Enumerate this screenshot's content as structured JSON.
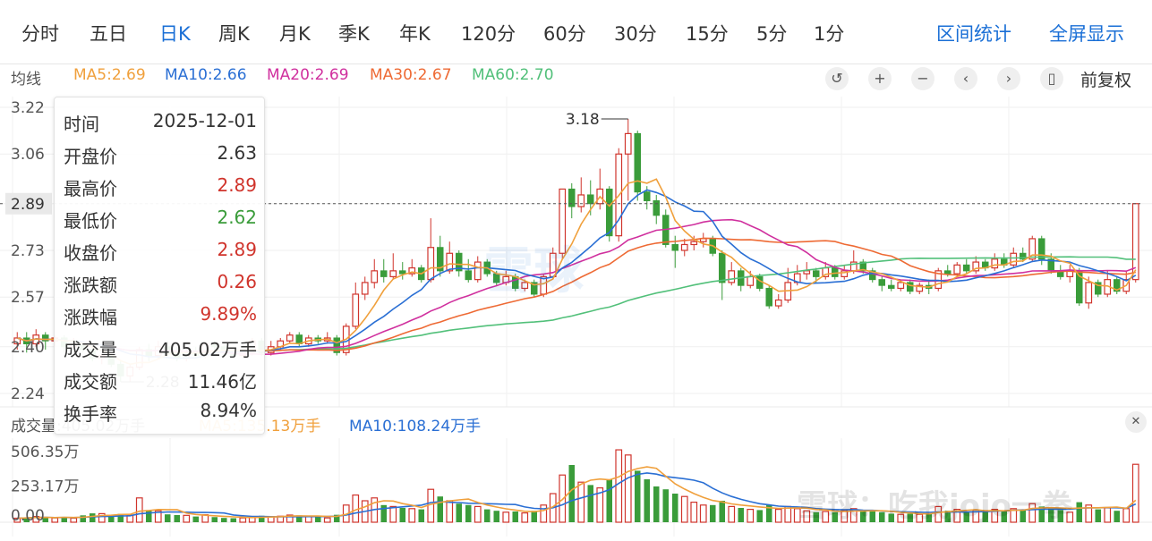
{
  "tabs": [
    {
      "label": "分时",
      "active": false
    },
    {
      "label": "五日",
      "active": false
    },
    {
      "label": "日K",
      "active": true
    },
    {
      "label": "周K",
      "active": false
    },
    {
      "label": "月K",
      "active": false
    },
    {
      "label": "季K",
      "active": false
    },
    {
      "label": "年K",
      "active": false
    },
    {
      "label": "120分",
      "active": false
    },
    {
      "label": "60分",
      "active": false
    },
    {
      "label": "30分",
      "active": false
    },
    {
      "label": "15分",
      "active": false
    },
    {
      "label": "5分",
      "active": false
    },
    {
      "label": "1分",
      "active": false
    }
  ],
  "tools": {
    "interval_stats": "区间统计",
    "fullscreen": "全屏显示",
    "adjust": "前复权"
  },
  "controls": [
    "undo-icon",
    "zoom-in-icon",
    "zoom-out-icon",
    "prev-icon",
    "next-icon",
    "candle-icon"
  ],
  "ma_legend": {
    "title": "均线",
    "items": [
      {
        "label": "MA5:2.69",
        "color": "#f0a03c"
      },
      {
        "label": "MA10:2.66",
        "color": "#2a6fd4"
      },
      {
        "label": "MA20:2.69",
        "color": "#d0309e"
      },
      {
        "label": "MA30:2.67",
        "color": "#ee6a34"
      },
      {
        "label": "MA60:2.70",
        "color": "#52c07a"
      }
    ]
  },
  "tooltip": {
    "rows": [
      {
        "k": "时间",
        "v": "2025-12-01",
        "tone": ""
      },
      {
        "k": "开盘价",
        "v": "2.63",
        "tone": ""
      },
      {
        "k": "最高价",
        "v": "2.89",
        "tone": "up"
      },
      {
        "k": "最低价",
        "v": "2.62",
        "tone": "down"
      },
      {
        "k": "收盘价",
        "v": "2.89",
        "tone": "up"
      },
      {
        "k": "涨跌额",
        "v": "0.26",
        "tone": "up"
      },
      {
        "k": "涨跌幅",
        "v": "9.89%",
        "tone": "up"
      },
      {
        "k": "成交量",
        "v": "405.02万手",
        "tone": ""
      },
      {
        "k": "成交额",
        "v": "11.46亿",
        "tone": ""
      },
      {
        "k": "换手率",
        "v": "8.94%",
        "tone": ""
      }
    ]
  },
  "vol_legend": {
    "items": [
      {
        "label": "成交量:405.02万手",
        "color": "#555555"
      },
      {
        "label": "MA5:135.13万手",
        "color": "#f0a03c"
      },
      {
        "label": "MA10:108.24万手",
        "color": "#2a6fd4"
      }
    ]
  },
  "watermark": "雪球：吃我jojo一拳",
  "watermark_center": "雪球",
  "chart_data": {
    "type": "candlestick",
    "price_axis": {
      "ticks": [
        "3.22",
        "3.06",
        "2.89",
        "2.73",
        "2.57",
        "2.40",
        "2.24"
      ],
      "ylim": [
        2.24,
        3.22
      ],
      "current": "2.89"
    },
    "volume_axis": {
      "ticks": [
        "506.35万",
        "253.17万",
        "0.00"
      ],
      "ylim": [
        0,
        506.35
      ]
    },
    "annotations": {
      "high": "3.18",
      "low": "2.28"
    },
    "colors": {
      "up": "#d0342c",
      "down": "#3a9c3a"
    },
    "candles": [
      {
        "o": 2.41,
        "c": 2.43,
        "h": 2.45,
        "l": 2.39,
        "v": 28
      },
      {
        "o": 2.43,
        "c": 2.41,
        "h": 2.45,
        "l": 2.38,
        "v": 32
      },
      {
        "o": 2.41,
        "c": 2.44,
        "h": 2.46,
        "l": 2.4,
        "v": 40
      },
      {
        "o": 2.44,
        "c": 2.42,
        "h": 2.45,
        "l": 2.39,
        "v": 34
      },
      {
        "o": 2.42,
        "c": 2.43,
        "h": 2.44,
        "l": 2.4,
        "v": 30
      },
      {
        "o": 2.43,
        "c": 2.4,
        "h": 2.44,
        "l": 2.38,
        "v": 35
      },
      {
        "o": 2.4,
        "c": 2.41,
        "h": 2.43,
        "l": 2.39,
        "v": 28
      },
      {
        "o": 2.41,
        "c": 2.39,
        "h": 2.42,
        "l": 2.38,
        "v": 48
      },
      {
        "o": 2.39,
        "c": 2.36,
        "h": 2.4,
        "l": 2.35,
        "v": 62
      },
      {
        "o": 2.36,
        "c": 2.37,
        "h": 2.39,
        "l": 2.34,
        "v": 60
      },
      {
        "o": 2.37,
        "c": 2.34,
        "h": 2.38,
        "l": 2.33,
        "v": 45
      },
      {
        "o": 2.34,
        "c": 2.3,
        "h": 2.35,
        "l": 2.28,
        "v": 58
      },
      {
        "o": 2.3,
        "c": 2.33,
        "h": 2.34,
        "l": 2.28,
        "v": 50
      },
      {
        "o": 2.33,
        "c": 2.39,
        "h": 2.4,
        "l": 2.32,
        "v": 170
      },
      {
        "o": 2.39,
        "c": 2.37,
        "h": 2.41,
        "l": 2.35,
        "v": 85
      },
      {
        "o": 2.37,
        "c": 2.4,
        "h": 2.42,
        "l": 2.36,
        "v": 80
      },
      {
        "o": 2.4,
        "c": 2.38,
        "h": 2.42,
        "l": 2.37,
        "v": 55
      },
      {
        "o": 2.38,
        "c": 2.36,
        "h": 2.4,
        "l": 2.35,
        "v": 50
      },
      {
        "o": 2.36,
        "c": 2.38,
        "h": 2.39,
        "l": 2.35,
        "v": 48
      },
      {
        "o": 2.38,
        "c": 2.37,
        "h": 2.4,
        "l": 2.36,
        "v": 40
      },
      {
        "o": 2.37,
        "c": 2.41,
        "h": 2.42,
        "l": 2.36,
        "v": 52
      },
      {
        "o": 2.41,
        "c": 2.4,
        "h": 2.42,
        "l": 2.38,
        "v": 36
      },
      {
        "o": 2.4,
        "c": 2.38,
        "h": 2.41,
        "l": 2.37,
        "v": 30
      },
      {
        "o": 2.38,
        "c": 2.37,
        "h": 2.39,
        "l": 2.36,
        "v": 28
      },
      {
        "o": 2.37,
        "c": 2.38,
        "h": 2.39,
        "l": 2.36,
        "v": 30
      },
      {
        "o": 2.38,
        "c": 2.42,
        "h": 2.43,
        "l": 2.37,
        "v": 40
      },
      {
        "o": 2.42,
        "c": 2.38,
        "h": 2.43,
        "l": 2.37,
        "v": 45
      },
      {
        "o": 2.38,
        "c": 2.4,
        "h": 2.42,
        "l": 2.37,
        "v": 38
      },
      {
        "o": 2.4,
        "c": 2.42,
        "h": 2.43,
        "l": 2.39,
        "v": 42
      },
      {
        "o": 2.42,
        "c": 2.44,
        "h": 2.45,
        "l": 2.41,
        "v": 50
      },
      {
        "o": 2.44,
        "c": 2.41,
        "h": 2.45,
        "l": 2.4,
        "v": 48
      },
      {
        "o": 2.41,
        "c": 2.43,
        "h": 2.44,
        "l": 2.4,
        "v": 40
      },
      {
        "o": 2.43,
        "c": 2.42,
        "h": 2.44,
        "l": 2.41,
        "v": 35
      },
      {
        "o": 2.42,
        "c": 2.43,
        "h": 2.45,
        "l": 2.41,
        "v": 30
      },
      {
        "o": 2.43,
        "c": 2.38,
        "h": 2.44,
        "l": 2.37,
        "v": 52
      },
      {
        "o": 2.38,
        "c": 2.47,
        "h": 2.48,
        "l": 2.37,
        "v": 120
      },
      {
        "o": 2.47,
        "c": 2.58,
        "h": 2.62,
        "l": 2.46,
        "v": 190
      },
      {
        "o": 2.58,
        "c": 2.62,
        "h": 2.64,
        "l": 2.56,
        "v": 150
      },
      {
        "o": 2.62,
        "c": 2.66,
        "h": 2.7,
        "l": 2.6,
        "v": 170
      },
      {
        "o": 2.66,
        "c": 2.64,
        "h": 2.7,
        "l": 2.62,
        "v": 120
      },
      {
        "o": 2.64,
        "c": 2.66,
        "h": 2.72,
        "l": 2.63,
        "v": 110
      },
      {
        "o": 2.66,
        "c": 2.65,
        "h": 2.69,
        "l": 2.63,
        "v": 100
      },
      {
        "o": 2.65,
        "c": 2.67,
        "h": 2.7,
        "l": 2.64,
        "v": 95
      },
      {
        "o": 2.67,
        "c": 2.63,
        "h": 2.68,
        "l": 2.62,
        "v": 90
      },
      {
        "o": 2.63,
        "c": 2.74,
        "h": 2.84,
        "l": 2.62,
        "v": 230
      },
      {
        "o": 2.74,
        "c": 2.66,
        "h": 2.78,
        "l": 2.64,
        "v": 180
      },
      {
        "o": 2.66,
        "c": 2.72,
        "h": 2.76,
        "l": 2.65,
        "v": 150
      },
      {
        "o": 2.72,
        "c": 2.66,
        "h": 2.73,
        "l": 2.64,
        "v": 130
      },
      {
        "o": 2.66,
        "c": 2.63,
        "h": 2.7,
        "l": 2.62,
        "v": 120
      },
      {
        "o": 2.63,
        "c": 2.69,
        "h": 2.71,
        "l": 2.62,
        "v": 110
      },
      {
        "o": 2.69,
        "c": 2.65,
        "h": 2.7,
        "l": 2.64,
        "v": 90
      },
      {
        "o": 2.65,
        "c": 2.62,
        "h": 2.66,
        "l": 2.61,
        "v": 80
      },
      {
        "o": 2.62,
        "c": 2.64,
        "h": 2.66,
        "l": 2.61,
        "v": 70
      },
      {
        "o": 2.64,
        "c": 2.6,
        "h": 2.65,
        "l": 2.59,
        "v": 75
      },
      {
        "o": 2.6,
        "c": 2.62,
        "h": 2.63,
        "l": 2.59,
        "v": 65
      },
      {
        "o": 2.62,
        "c": 2.58,
        "h": 2.63,
        "l": 2.57,
        "v": 80
      },
      {
        "o": 2.58,
        "c": 2.64,
        "h": 2.65,
        "l": 2.57,
        "v": 120
      },
      {
        "o": 2.64,
        "c": 2.72,
        "h": 2.74,
        "l": 2.63,
        "v": 200
      },
      {
        "o": 2.72,
        "c": 2.94,
        "h": 2.94,
        "l": 2.7,
        "v": 330
      },
      {
        "o": 2.94,
        "c": 2.88,
        "h": 2.96,
        "l": 2.84,
        "v": 400
      },
      {
        "o": 2.88,
        "c": 2.92,
        "h": 2.98,
        "l": 2.86,
        "v": 280
      },
      {
        "o": 2.92,
        "c": 2.89,
        "h": 2.97,
        "l": 2.85,
        "v": 260
      },
      {
        "o": 2.89,
        "c": 2.94,
        "h": 3.01,
        "l": 2.87,
        "v": 240
      },
      {
        "o": 2.94,
        "c": 2.78,
        "h": 2.95,
        "l": 2.76,
        "v": 300
      },
      {
        "o": 2.78,
        "c": 3.06,
        "h": 3.08,
        "l": 2.76,
        "v": 506
      },
      {
        "o": 3.06,
        "c": 3.13,
        "h": 3.18,
        "l": 2.9,
        "v": 470
      },
      {
        "o": 3.13,
        "c": 2.93,
        "h": 3.14,
        "l": 2.9,
        "v": 360
      },
      {
        "o": 2.93,
        "c": 2.9,
        "h": 2.95,
        "l": 2.87,
        "v": 300
      },
      {
        "o": 2.9,
        "c": 2.85,
        "h": 2.92,
        "l": 2.82,
        "v": 250
      },
      {
        "o": 2.85,
        "c": 2.75,
        "h": 2.87,
        "l": 2.74,
        "v": 230
      },
      {
        "o": 2.75,
        "c": 2.73,
        "h": 2.78,
        "l": 2.67,
        "v": 200
      },
      {
        "o": 2.73,
        "c": 2.75,
        "h": 2.77,
        "l": 2.71,
        "v": 180
      },
      {
        "o": 2.75,
        "c": 2.76,
        "h": 2.78,
        "l": 2.73,
        "v": 140
      },
      {
        "o": 2.76,
        "c": 2.77,
        "h": 2.79,
        "l": 2.74,
        "v": 120
      },
      {
        "o": 2.77,
        "c": 2.72,
        "h": 2.78,
        "l": 2.71,
        "v": 120
      },
      {
        "o": 2.72,
        "c": 2.62,
        "h": 2.73,
        "l": 2.56,
        "v": 150
      },
      {
        "o": 2.62,
        "c": 2.66,
        "h": 2.69,
        "l": 2.61,
        "v": 110
      },
      {
        "o": 2.66,
        "c": 2.61,
        "h": 2.67,
        "l": 2.59,
        "v": 100
      },
      {
        "o": 2.61,
        "c": 2.64,
        "h": 2.66,
        "l": 2.6,
        "v": 90
      },
      {
        "o": 2.64,
        "c": 2.6,
        "h": 2.65,
        "l": 2.59,
        "v": 85
      },
      {
        "o": 2.6,
        "c": 2.54,
        "h": 2.61,
        "l": 2.53,
        "v": 120
      },
      {
        "o": 2.54,
        "c": 2.56,
        "h": 2.58,
        "l": 2.53,
        "v": 90
      },
      {
        "o": 2.56,
        "c": 2.62,
        "h": 2.67,
        "l": 2.55,
        "v": 110
      },
      {
        "o": 2.62,
        "c": 2.65,
        "h": 2.68,
        "l": 2.61,
        "v": 95
      },
      {
        "o": 2.65,
        "c": 2.66,
        "h": 2.69,
        "l": 2.63,
        "v": 80
      },
      {
        "o": 2.66,
        "c": 2.64,
        "h": 2.67,
        "l": 2.62,
        "v": 70
      },
      {
        "o": 2.64,
        "c": 2.67,
        "h": 2.69,
        "l": 2.63,
        "v": 75
      },
      {
        "o": 2.67,
        "c": 2.64,
        "h": 2.68,
        "l": 2.63,
        "v": 70
      },
      {
        "o": 2.64,
        "c": 2.66,
        "h": 2.68,
        "l": 2.63,
        "v": 80
      },
      {
        "o": 2.66,
        "c": 2.69,
        "h": 2.73,
        "l": 2.65,
        "v": 95
      },
      {
        "o": 2.69,
        "c": 2.66,
        "h": 2.7,
        "l": 2.65,
        "v": 75
      },
      {
        "o": 2.66,
        "c": 2.63,
        "h": 2.67,
        "l": 2.62,
        "v": 80
      },
      {
        "o": 2.63,
        "c": 2.61,
        "h": 2.64,
        "l": 2.59,
        "v": 70
      },
      {
        "o": 2.61,
        "c": 2.6,
        "h": 2.63,
        "l": 2.59,
        "v": 60
      },
      {
        "o": 2.6,
        "c": 2.62,
        "h": 2.63,
        "l": 2.59,
        "v": 55
      },
      {
        "o": 2.62,
        "c": 2.59,
        "h": 2.63,
        "l": 2.58,
        "v": 60
      },
      {
        "o": 2.59,
        "c": 2.61,
        "h": 2.62,
        "l": 2.58,
        "v": 55
      },
      {
        "o": 2.61,
        "c": 2.6,
        "h": 2.63,
        "l": 2.58,
        "v": 60
      },
      {
        "o": 2.6,
        "c": 2.66,
        "h": 2.67,
        "l": 2.59,
        "v": 110
      },
      {
        "o": 2.66,
        "c": 2.65,
        "h": 2.68,
        "l": 2.64,
        "v": 80
      },
      {
        "o": 2.65,
        "c": 2.68,
        "h": 2.69,
        "l": 2.64,
        "v": 90
      },
      {
        "o": 2.68,
        "c": 2.66,
        "h": 2.7,
        "l": 2.65,
        "v": 75
      },
      {
        "o": 2.66,
        "c": 2.69,
        "h": 2.71,
        "l": 2.65,
        "v": 85
      },
      {
        "o": 2.69,
        "c": 2.67,
        "h": 2.7,
        "l": 2.66,
        "v": 70
      },
      {
        "o": 2.67,
        "c": 2.7,
        "h": 2.72,
        "l": 2.66,
        "v": 90
      },
      {
        "o": 2.7,
        "c": 2.68,
        "h": 2.72,
        "l": 2.67,
        "v": 80
      },
      {
        "o": 2.68,
        "c": 2.72,
        "h": 2.74,
        "l": 2.67,
        "v": 95
      },
      {
        "o": 2.72,
        "c": 2.7,
        "h": 2.74,
        "l": 2.69,
        "v": 85
      },
      {
        "o": 2.7,
        "c": 2.77,
        "h": 2.78,
        "l": 2.69,
        "v": 130
      },
      {
        "o": 2.77,
        "c": 2.7,
        "h": 2.78,
        "l": 2.68,
        "v": 110
      },
      {
        "o": 2.7,
        "c": 2.66,
        "h": 2.72,
        "l": 2.65,
        "v": 90
      },
      {
        "o": 2.66,
        "c": 2.64,
        "h": 2.68,
        "l": 2.63,
        "v": 85
      },
      {
        "o": 2.64,
        "c": 2.66,
        "h": 2.68,
        "l": 2.62,
        "v": 70
      },
      {
        "o": 2.66,
        "c": 2.55,
        "h": 2.67,
        "l": 2.54,
        "v": 140
      },
      {
        "o": 2.55,
        "c": 2.62,
        "h": 2.64,
        "l": 2.53,
        "v": 120
      },
      {
        "o": 2.62,
        "c": 2.58,
        "h": 2.63,
        "l": 2.57,
        "v": 90
      },
      {
        "o": 2.58,
        "c": 2.63,
        "h": 2.66,
        "l": 2.57,
        "v": 100
      },
      {
        "o": 2.63,
        "c": 2.59,
        "h": 2.64,
        "l": 2.58,
        "v": 80
      },
      {
        "o": 2.59,
        "c": 2.63,
        "h": 2.66,
        "l": 2.58,
        "v": 95
      },
      {
        "o": 2.63,
        "c": 2.89,
        "h": 2.89,
        "l": 2.62,
        "v": 405.02
      }
    ]
  }
}
